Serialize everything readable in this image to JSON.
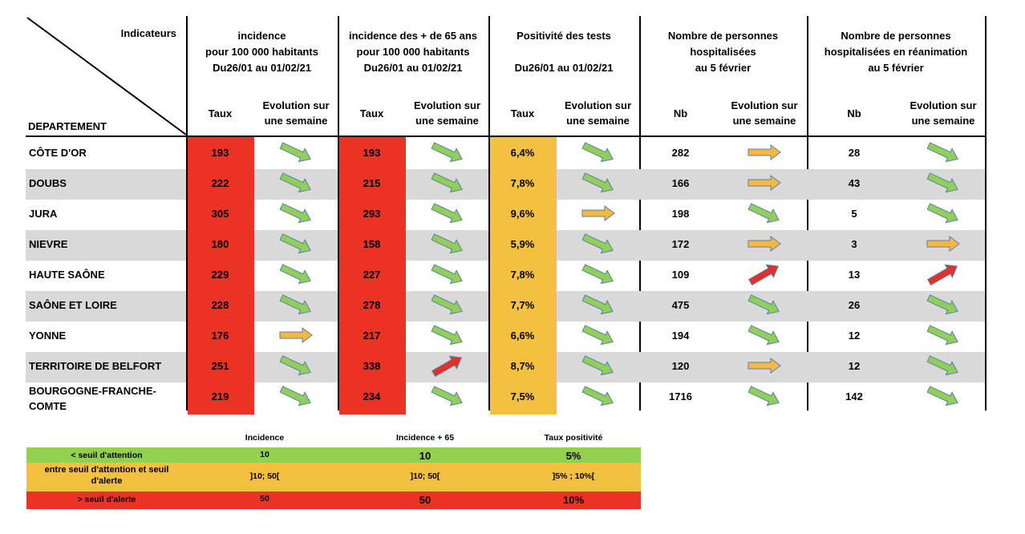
{
  "header": {
    "corner_top": "Indicateurs",
    "corner_bottom": "DEPARTEMENT",
    "groups": [
      {
        "lines": [
          "incidence",
          "pour 100 000 habitants",
          "Du26/01 au 01/02/21"
        ]
      },
      {
        "lines": [
          "incidence des + de 65 ans",
          "pour 100 000 habitants",
          "Du26/01 au 01/02/21"
        ]
      },
      {
        "lines": [
          "Positivité des tests",
          "",
          "Du26/01 au 01/02/21"
        ]
      },
      {
        "lines": [
          "Nombre de personnes",
          "hospitalisées",
          "au 5 février"
        ]
      },
      {
        "lines": [
          "Nombre de personnes",
          "hospitalisées en réanimation",
          "au 5 février"
        ]
      }
    ],
    "subheaders": [
      "Taux",
      "Evolution sur\nune semaine",
      "Taux",
      "Evolution sur\nune semaine",
      "Taux",
      "Evolution sur\nune semaine",
      "Nb",
      "Evolution sur\nune semaine",
      "Nb",
      "Evolution sur\nune semaine"
    ]
  },
  "rows": [
    {
      "dept": "CÔTE D'OR",
      "inc": "193",
      "inc_trend": "down",
      "inc65": "193",
      "inc65_trend": "down",
      "pos": "6,4%",
      "pos_trend": "down",
      "hosp": "282",
      "hosp_trend": "flat",
      "rea": "28",
      "rea_trend": "down"
    },
    {
      "dept": "DOUBS",
      "inc": "222",
      "inc_trend": "down",
      "inc65": "215",
      "inc65_trend": "down",
      "pos": "7,8%",
      "pos_trend": "down",
      "hosp": "166",
      "hosp_trend": "flat",
      "rea": "43",
      "rea_trend": "down"
    },
    {
      "dept": "JURA",
      "inc": "305",
      "inc_trend": "down",
      "inc65": "293",
      "inc65_trend": "down",
      "pos": "9,6%",
      "pos_trend": "flat",
      "hosp": "198",
      "hosp_trend": "down",
      "rea": "5",
      "rea_trend": "down"
    },
    {
      "dept": "NIEVRE",
      "inc": "180",
      "inc_trend": "down",
      "inc65": "158",
      "inc65_trend": "down",
      "pos": "5,9%",
      "pos_trend": "down",
      "hosp": "172",
      "hosp_trend": "flat",
      "rea": "3",
      "rea_trend": "flat"
    },
    {
      "dept": "HAUTE SAÔNE",
      "inc": "229",
      "inc_trend": "down",
      "inc65": "227",
      "inc65_trend": "down",
      "pos": "7,8%",
      "pos_trend": "down",
      "hosp": "109",
      "hosp_trend": "up",
      "rea": "13",
      "rea_trend": "up"
    },
    {
      "dept": "SAÔNE ET LOIRE",
      "inc": "228",
      "inc_trend": "down",
      "inc65": "278",
      "inc65_trend": "down",
      "pos": "7,7%",
      "pos_trend": "down",
      "hosp": "475",
      "hosp_trend": "down",
      "rea": "26",
      "rea_trend": "down"
    },
    {
      "dept": "YONNE",
      "inc": "176",
      "inc_trend": "flat",
      "inc65": "217",
      "inc65_trend": "down",
      "pos": "6,6%",
      "pos_trend": "down",
      "hosp": "194",
      "hosp_trend": "down",
      "rea": "12",
      "rea_trend": "down"
    },
    {
      "dept": "TERRITOIRE DE BELFORT",
      "inc": "251",
      "inc_trend": "down",
      "inc65": "338",
      "inc65_trend": "up",
      "pos": "8,7%",
      "pos_trend": "down",
      "hosp": "120",
      "hosp_trend": "flat",
      "rea": "12",
      "rea_trend": "down"
    },
    {
      "dept": "BOURGOGNE-FRANCHE-\nCOMTE",
      "inc": "219",
      "inc_trend": "down",
      "inc65": "234",
      "inc65_trend": "down",
      "pos": "7,5%",
      "pos_trend": "down",
      "hosp": "1716",
      "hosp_trend": "down",
      "rea": "142",
      "rea_trend": "down"
    }
  ],
  "legend": {
    "headers": [
      "Incidence",
      "Incidence + 65",
      "Taux positivité"
    ],
    "rows": [
      {
        "label": "< seuil d'attention",
        "inc": "10",
        "inc65": "10",
        "pos": "5%",
        "color": "#92d050"
      },
      {
        "label": "entre seuil d'attention et seuil\nd'alerte",
        "inc": "]10; 50[",
        "inc65": "]10; 50[",
        "pos": "]5% ; 10%[",
        "color": "#f3c040"
      },
      {
        "label": "> seuil d'alerte",
        "inc": "50",
        "inc65": "50",
        "pos": "10%",
        "color": "#ea3323"
      }
    ]
  },
  "colors": {
    "red": "#ea3323",
    "amber": "#f3c040",
    "green": "#92d050",
    "band": "#d9d9d9",
    "arrow_green": "#8fcf5a",
    "arrow_orange": "#f5b942",
    "arrow_red": "#e0312a",
    "arrow_stroke": "#5b7fa6"
  }
}
